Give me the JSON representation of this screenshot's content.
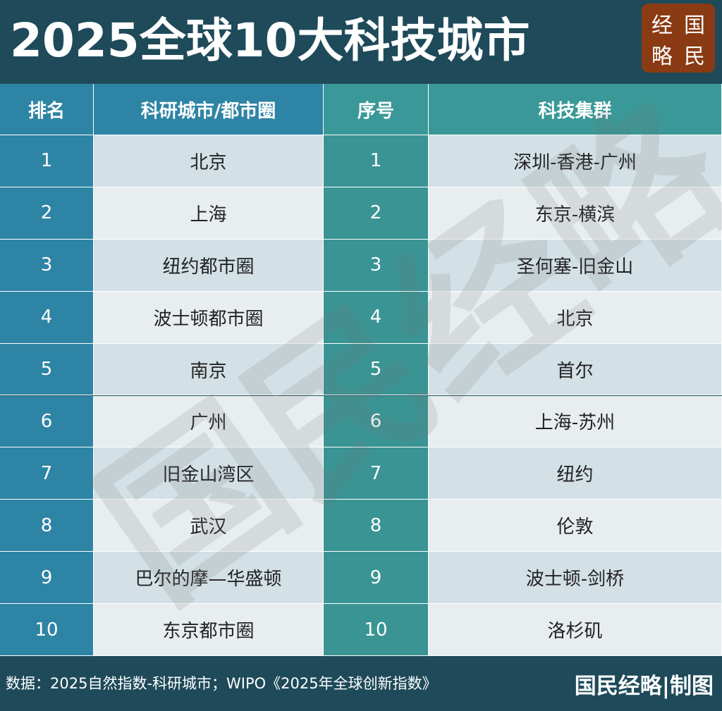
{
  "header": {
    "title": "2025全球10大科技城市",
    "logo": [
      "经",
      "国",
      "略",
      "民"
    ]
  },
  "table": {
    "columns": [
      "排名",
      "科研城市/都市圈",
      "序号",
      "科技集群"
    ],
    "rows": [
      [
        1,
        "北京",
        1,
        "深圳-香港-广州"
      ],
      [
        2,
        "上海",
        2,
        "东京-横滨"
      ],
      [
        3,
        "纽约都市圈",
        3,
        "圣何塞-旧金山"
      ],
      [
        4,
        "波士顿都市圈",
        4,
        "北京"
      ],
      [
        5,
        "南京",
        5,
        "首尔"
      ],
      [
        6,
        "广州",
        6,
        "上海-苏州"
      ],
      [
        7,
        "旧金山湾区",
        7,
        "纽约"
      ],
      [
        8,
        "武汉",
        8,
        "伦敦"
      ],
      [
        9,
        "巴尔的摩—华盛顿",
        9,
        "波士顿-剑桥"
      ],
      [
        10,
        "东京都市圈",
        10,
        "洛杉矶"
      ]
    ]
  },
  "watermark": "国民经略",
  "footer": {
    "source": "数据：2025自然指数-科研城市；WIPO《2025年全球创新指数》",
    "brand": "国民经略|制图"
  }
}
